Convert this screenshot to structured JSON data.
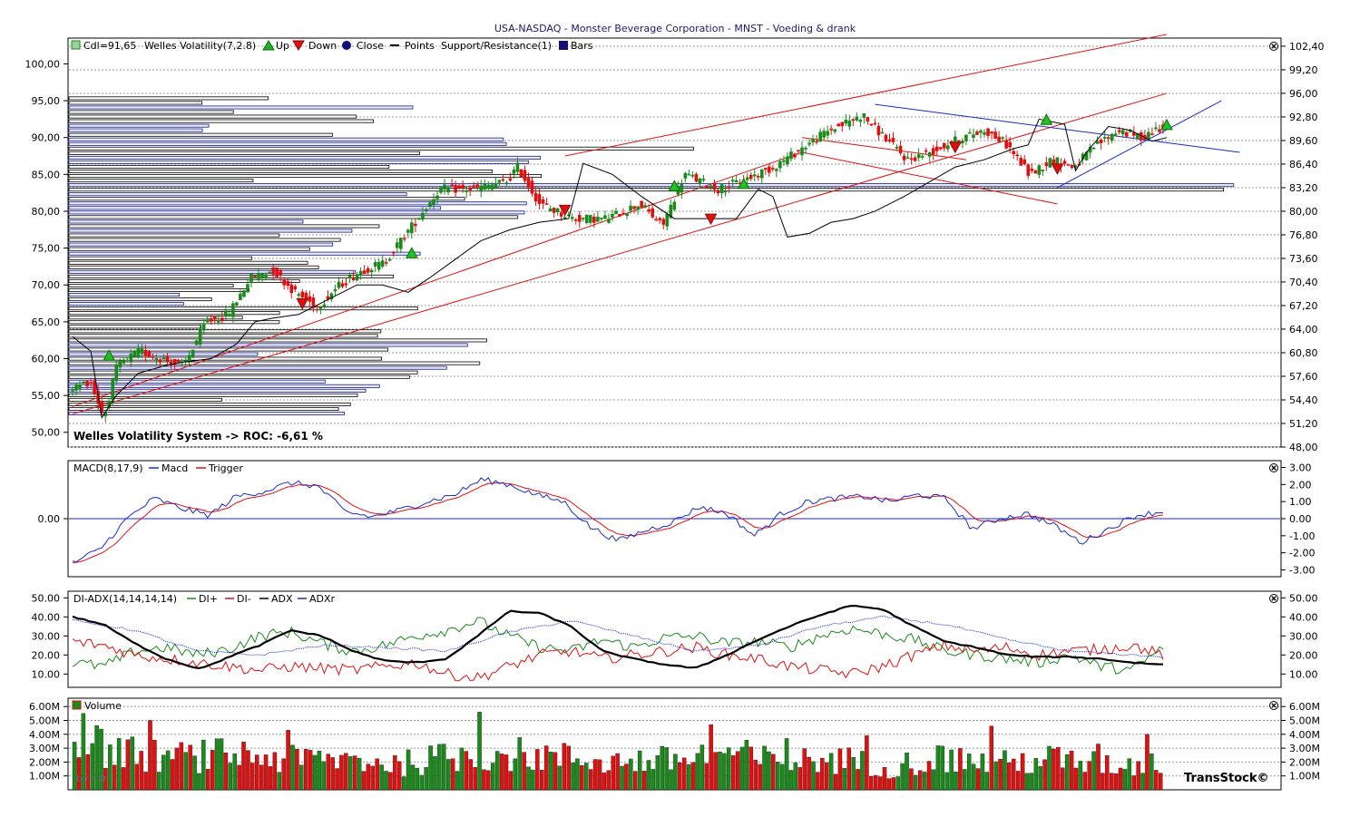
{
  "title": "USA-NASDAQ - Monster Beverage Corporation - MNST - Voeding & drank",
  "brand": "TransStock©",
  "watermark": "by / ✿",
  "colors": {
    "up": "#1a8a1a",
    "down": "#e01010",
    "blue": "#1a2ac8",
    "red": "#e01010",
    "black": "#000000",
    "green": "#1a8a1a"
  },
  "price_panel": {
    "legend": {
      "cdl": "Cdl=91,65",
      "welles": "Welles Volatility(7,2.8)",
      "up": "Up",
      "down": "Down",
      "close": "Close",
      "points": "Points",
      "sr": "Support/Resistance(1)",
      "bars": "Bars"
    },
    "left_ticks": [
      "100,00",
      "95,00",
      "90,00",
      "85,00",
      "80,00",
      "75,00",
      "70,00",
      "65,00",
      "60,00",
      "55,00",
      "50,00"
    ],
    "right_ticks": [
      "102,40",
      "99,20",
      "96,00",
      "92,80",
      "89,60",
      "86,40",
      "83,20",
      "80,00",
      "76,80",
      "73,60",
      "70,40",
      "67,20",
      "64,00",
      "60,80",
      "57,60",
      "54,40",
      "51,20",
      "48,00"
    ],
    "roc_text": "Welles Volatility System -> ROC: -6,61 %"
  },
  "macd_panel": {
    "legend": {
      "name": "MACD(8,17,9)",
      "macd": "Macd",
      "trigger": "Trigger"
    },
    "left_ticks": [
      "0.00"
    ],
    "right_ticks": [
      "3.00",
      "2.00",
      "1.00",
      "0.00",
      "-1.00",
      "-2.00",
      "-3.00"
    ]
  },
  "adx_panel": {
    "legend": {
      "name": "DI-ADX(14,14,14,14)",
      "diplus": "DI+",
      "diminus": "DI-",
      "adx": "ADX",
      "adxr": "ADXr"
    },
    "left_ticks": [
      "50.00",
      "40.00",
      "30.00",
      "20.00",
      "10.00"
    ],
    "right_ticks": [
      "50.00",
      "40.00",
      "30.00",
      "20.00",
      "10.00"
    ]
  },
  "volume_panel": {
    "legend": {
      "name": "Volume"
    },
    "left_ticks": [
      "6.00M",
      "5.00M",
      "4.00M",
      "3.00M",
      "2.00M",
      "1.00M"
    ],
    "right_ticks": [
      "6.00M",
      "5.00M",
      "4.00M",
      "3.00M",
      "2.00M",
      "1.00M"
    ]
  },
  "chart_data": [
    {
      "type": "candlestick",
      "name": "price",
      "x_count": 300,
      "ylim": [
        48.0,
        103.5
      ],
      "start_close": 56.0,
      "end_close": 91.65,
      "anchors": [
        [
          0,
          56
        ],
        [
          8,
          57
        ],
        [
          14,
          52
        ],
        [
          20,
          59
        ],
        [
          30,
          61
        ],
        [
          40,
          60
        ],
        [
          50,
          59
        ],
        [
          60,
          65
        ],
        [
          70,
          66
        ],
        [
          80,
          71
        ],
        [
          90,
          72
        ],
        [
          100,
          69
        ],
        [
          110,
          67
        ],
        [
          120,
          70
        ],
        [
          130,
          72
        ],
        [
          140,
          73
        ],
        [
          150,
          77
        ],
        [
          165,
          83
        ],
        [
          180,
          83
        ],
        [
          195,
          84
        ],
        [
          200,
          86
        ],
        [
          210,
          81
        ],
        [
          225,
          79
        ],
        [
          240,
          79
        ],
        [
          255,
          81
        ],
        [
          265,
          78
        ],
        [
          275,
          85
        ],
        [
          290,
          83
        ],
        [
          300,
          84
        ],
        [
          315,
          86
        ],
        [
          325,
          88
        ],
        [
          340,
          91
        ],
        [
          355,
          93
        ],
        [
          365,
          90
        ],
        [
          375,
          87
        ],
        [
          385,
          88
        ],
        [
          400,
          90
        ],
        [
          410,
          91
        ],
        [
          420,
          89
        ],
        [
          430,
          85
        ],
        [
          440,
          87
        ],
        [
          450,
          86
        ],
        [
          460,
          89
        ],
        [
          470,
          91
        ],
        [
          480,
          90
        ],
        [
          490,
          91.65
        ]
      ],
      "signals_up": [
        [
          10,
          60.4
        ],
        [
          93,
          74.3
        ],
        [
          165,
          83.4
        ],
        [
          184,
          83.7
        ],
        [
          267,
          92.4
        ],
        [
          300,
          91.7
        ]
      ],
      "signals_down": [
        [
          63,
          67.5
        ],
        [
          135,
          80.2
        ],
        [
          175,
          79.0
        ],
        [
          242,
          88.7
        ],
        [
          270,
          85.8
        ]
      ],
      "welles_line": [
        [
          0,
          63
        ],
        [
          5,
          61
        ],
        [
          8,
          52
        ],
        [
          12,
          55
        ],
        [
          18,
          58
        ],
        [
          25,
          59
        ],
        [
          30,
          59.5
        ],
        [
          38,
          60
        ],
        [
          45,
          62
        ],
        [
          50,
          65
        ],
        [
          55,
          65.5
        ],
        [
          62,
          66
        ],
        [
          70,
          68
        ],
        [
          78,
          70
        ],
        [
          85,
          70
        ],
        [
          92,
          69
        ],
        [
          98,
          71
        ],
        [
          105,
          73.5
        ],
        [
          112,
          76
        ],
        [
          120,
          77.5
        ],
        [
          128,
          78.5
        ],
        [
          136,
          79
        ],
        [
          140,
          86.5
        ],
        [
          148,
          85
        ],
        [
          156,
          82
        ],
        [
          165,
          79
        ],
        [
          175,
          79
        ],
        [
          182,
          79
        ],
        [
          188,
          83
        ],
        [
          192,
          82
        ],
        [
          196,
          76.5
        ],
        [
          202,
          77
        ],
        [
          208,
          78.5
        ],
        [
          214,
          79
        ],
        [
          220,
          80
        ],
        [
          228,
          82
        ],
        [
          235,
          84
        ],
        [
          242,
          86
        ],
        [
          250,
          87
        ],
        [
          258,
          88.5
        ],
        [
          262,
          89
        ],
        [
          265,
          92.5
        ],
        [
          272,
          91.8
        ],
        [
          275,
          85.5
        ],
        [
          278,
          88
        ],
        [
          284,
          91.5
        ],
        [
          290,
          91
        ],
        [
          296,
          89.5
        ],
        [
          300,
          90
        ]
      ],
      "support_resistance": [
        [
          [
            0,
            52.5
          ],
          [
            300,
            96
          ]
        ],
        [
          [
            0,
            53.5
          ],
          [
            200,
            88
          ]
        ],
        [
          [
            135,
            87.5
          ],
          [
            300,
            104
          ]
        ],
        [
          [
            200,
            90
          ],
          [
            245,
            87
          ]
        ],
        [
          [
            200,
            88
          ],
          [
            270,
            81
          ]
        ]
      ],
      "trend_lines_blue": [
        [
          [
            220,
            94.5
          ],
          [
            320,
            88
          ]
        ],
        [
          [
            270,
            83.2
          ],
          [
            315,
            95
          ]
        ]
      ]
    },
    {
      "type": "line",
      "name": "MACD",
      "series": [
        {
          "name": "Macd",
          "color": "blue"
        },
        {
          "name": "Trigger",
          "color": "red"
        }
      ],
      "ylim": [
        -3.4,
        3.4
      ],
      "anchors": [
        [
          0,
          -2.6
        ],
        [
          10,
          -1.8
        ],
        [
          20,
          0
        ],
        [
          30,
          1.2
        ],
        [
          40,
          0.6
        ],
        [
          50,
          0.2
        ],
        [
          60,
          1.3
        ],
        [
          70,
          1.6
        ],
        [
          80,
          2.1
        ],
        [
          90,
          1.9
        ],
        [
          100,
          0.4
        ],
        [
          110,
          0.1
        ],
        [
          120,
          0.5
        ],
        [
          130,
          1.0
        ],
        [
          140,
          1.4
        ],
        [
          150,
          2.3
        ],
        [
          160,
          2.0
        ],
        [
          170,
          1.4
        ],
        [
          180,
          1.0
        ],
        [
          190,
          -0.5
        ],
        [
          200,
          -1.3
        ],
        [
          210,
          -0.7
        ],
        [
          220,
          -0.2
        ],
        [
          230,
          0.7
        ],
        [
          240,
          0.3
        ],
        [
          250,
          -1.0
        ],
        [
          260,
          0.3
        ],
        [
          270,
          1.0
        ],
        [
          280,
          1.2
        ],
        [
          290,
          1.3
        ],
        [
          300,
          1.0
        ],
        [
          310,
          1.4
        ],
        [
          320,
          1.2
        ],
        [
          330,
          -0.6
        ],
        [
          340,
          0.0
        ],
        [
          350,
          0.3
        ],
        [
          360,
          -0.4
        ],
        [
          370,
          -1.4
        ],
        [
          380,
          -0.6
        ],
        [
          390,
          0.2
        ],
        [
          400,
          0.4
        ]
      ]
    },
    {
      "type": "line",
      "name": "DI-ADX",
      "series": [
        {
          "name": "DI+",
          "color": "green"
        },
        {
          "name": "DI-",
          "color": "red"
        },
        {
          "name": "ADX",
          "color": "black"
        },
        {
          "name": "ADXr",
          "color": "blue"
        }
      ],
      "ylim": [
        3,
        53.5
      ],
      "adx": [
        [
          0,
          40
        ],
        [
          10,
          36
        ],
        [
          20,
          26
        ],
        [
          30,
          18
        ],
        [
          40,
          13
        ],
        [
          45,
          15
        ],
        [
          50,
          19
        ],
        [
          60,
          25
        ],
        [
          70,
          33
        ],
        [
          80,
          30
        ],
        [
          90,
          22
        ],
        [
          100,
          17
        ],
        [
          110,
          16
        ],
        [
          120,
          18
        ],
        [
          130,
          30
        ],
        [
          140,
          43
        ],
        [
          150,
          42
        ],
        [
          160,
          35
        ],
        [
          170,
          22
        ],
        [
          180,
          18
        ],
        [
          190,
          15
        ],
        [
          200,
          13
        ],
        [
          210,
          20
        ],
        [
          220,
          28
        ],
        [
          230,
          35
        ],
        [
          240,
          41
        ],
        [
          250,
          46
        ],
        [
          260,
          44
        ],
        [
          270,
          35
        ],
        [
          280,
          27
        ],
        [
          290,
          24
        ],
        [
          300,
          20
        ],
        [
          310,
          19
        ],
        [
          320,
          19
        ],
        [
          330,
          18
        ],
        [
          340,
          16
        ],
        [
          350,
          15
        ]
      ],
      "adxr": [
        [
          0,
          38
        ],
        [
          20,
          33
        ],
        [
          40,
          22
        ],
        [
          60,
          20
        ],
        [
          80,
          25
        ],
        [
          100,
          24
        ],
        [
          120,
          22
        ],
        [
          140,
          32
        ],
        [
          160,
          38
        ],
        [
          180,
          30
        ],
        [
          200,
          22
        ],
        [
          220,
          25
        ],
        [
          240,
          35
        ],
        [
          260,
          40
        ],
        [
          280,
          36
        ],
        [
          300,
          28
        ],
        [
          320,
          22
        ],
        [
          340,
          20
        ],
        [
          350,
          19
        ]
      ],
      "di_plus": [
        [
          0,
          16
        ],
        [
          10,
          14
        ],
        [
          20,
          22
        ],
        [
          30,
          24
        ],
        [
          40,
          20
        ],
        [
          50,
          23
        ],
        [
          60,
          30
        ],
        [
          70,
          32
        ],
        [
          80,
          26
        ],
        [
          90,
          22
        ],
        [
          100,
          25
        ],
        [
          110,
          30
        ],
        [
          120,
          33
        ],
        [
          130,
          38
        ],
        [
          140,
          30
        ],
        [
          150,
          24
        ],
        [
          160,
          22
        ],
        [
          170,
          28
        ],
        [
          180,
          24
        ],
        [
          190,
          29
        ],
        [
          200,
          30
        ],
        [
          210,
          26
        ],
        [
          220,
          27
        ],
        [
          230,
          24
        ],
        [
          240,
          30
        ],
        [
          250,
          34
        ],
        [
          260,
          31
        ],
        [
          270,
          28
        ],
        [
          280,
          22
        ],
        [
          290,
          20
        ],
        [
          300,
          18
        ],
        [
          310,
          16
        ],
        [
          320,
          20
        ],
        [
          330,
          14
        ],
        [
          340,
          12
        ],
        [
          350,
          24
        ]
      ],
      "di_minus": [
        [
          0,
          27
        ],
        [
          10,
          25
        ],
        [
          20,
          20
        ],
        [
          30,
          18
        ],
        [
          40,
          16
        ],
        [
          50,
          14
        ],
        [
          60,
          12
        ],
        [
          70,
          14
        ],
        [
          80,
          13
        ],
        [
          90,
          12
        ],
        [
          100,
          14
        ],
        [
          110,
          16
        ],
        [
          120,
          10
        ],
        [
          130,
          8
        ],
        [
          140,
          14
        ],
        [
          150,
          20
        ],
        [
          160,
          22
        ],
        [
          170,
          18
        ],
        [
          180,
          20
        ],
        [
          190,
          22
        ],
        [
          200,
          24
        ],
        [
          210,
          20
        ],
        [
          220,
          18
        ],
        [
          230,
          14
        ],
        [
          240,
          12
        ],
        [
          250,
          10
        ],
        [
          260,
          14
        ],
        [
          270,
          20
        ],
        [
          280,
          25
        ],
        [
          290,
          22
        ],
        [
          300,
          24
        ],
        [
          310,
          20
        ],
        [
          320,
          22
        ],
        [
          330,
          23
        ],
        [
          340,
          25
        ],
        [
          350,
          20
        ]
      ]
    },
    {
      "type": "bar",
      "name": "Volume",
      "ylim": [
        0,
        6.6
      ],
      "unit": "M",
      "anchors": [
        [
          0,
          3.8
        ],
        [
          20,
          2.8
        ],
        [
          40,
          2.5
        ],
        [
          60,
          2.8
        ],
        [
          80,
          2.3
        ],
        [
          100,
          2.4
        ],
        [
          120,
          2.0
        ],
        [
          140,
          2.6
        ],
        [
          160,
          2.8
        ],
        [
          180,
          2.5
        ],
        [
          200,
          2.2
        ],
        [
          220,
          2.3
        ],
        [
          240,
          2.9
        ],
        [
          260,
          2.1
        ],
        [
          280,
          2.4
        ],
        [
          300,
          1.8
        ],
        [
          320,
          2.5
        ],
        [
          340,
          2.0
        ],
        [
          360,
          2.4
        ],
        [
          380,
          1.9
        ],
        [
          400,
          2.1
        ]
      ],
      "spikes": [
        [
          2,
          5.5
        ],
        [
          17,
          5.0
        ],
        [
          48,
          4.3
        ],
        [
          91,
          5.6
        ],
        [
          143,
          4.7
        ],
        [
          160,
          3.7
        ],
        [
          178,
          3.9
        ],
        [
          206,
          4.6
        ],
        [
          230,
          3.3
        ],
        [
          241,
          4.0
        ],
        [
          295,
          4.7
        ],
        [
          310,
          3.0
        ]
      ]
    }
  ]
}
